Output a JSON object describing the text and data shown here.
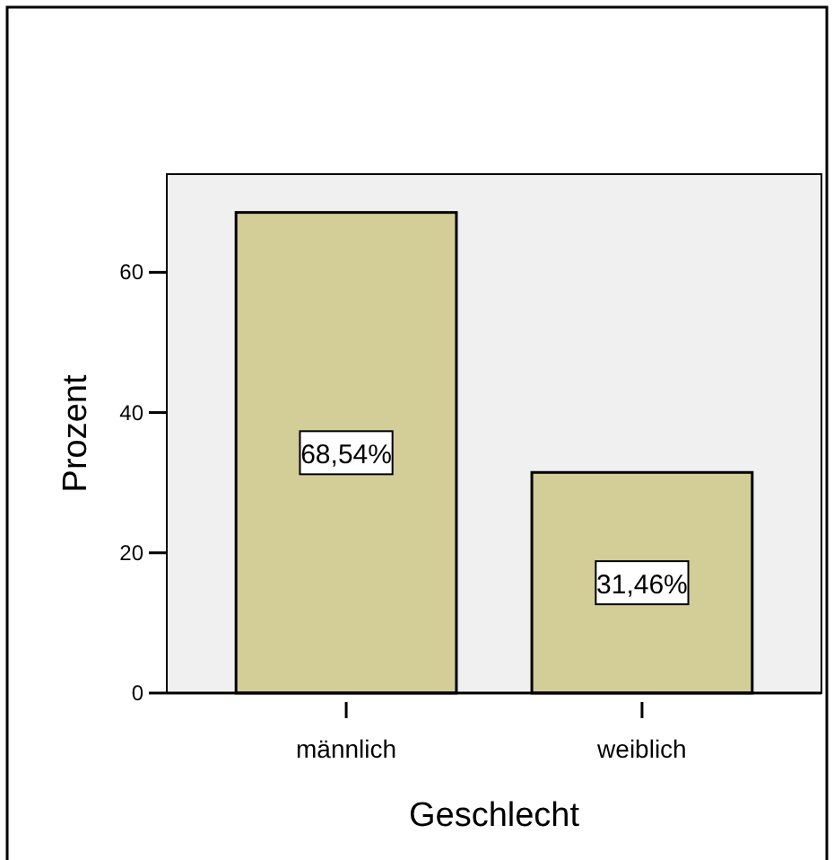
{
  "chart_data": {
    "type": "bar",
    "xlabel": "Geschlecht",
    "ylabel": "Prozent",
    "categories": [
      "männlich",
      "weiblich"
    ],
    "values": [
      68.54,
      31.46
    ],
    "value_labels": [
      "68,54%",
      "31,46%"
    ],
    "color": "#d3cd98",
    "ylim": [
      0,
      74
    ],
    "yticks": [
      0,
      20,
      40,
      60
    ],
    "grid": false
  }
}
